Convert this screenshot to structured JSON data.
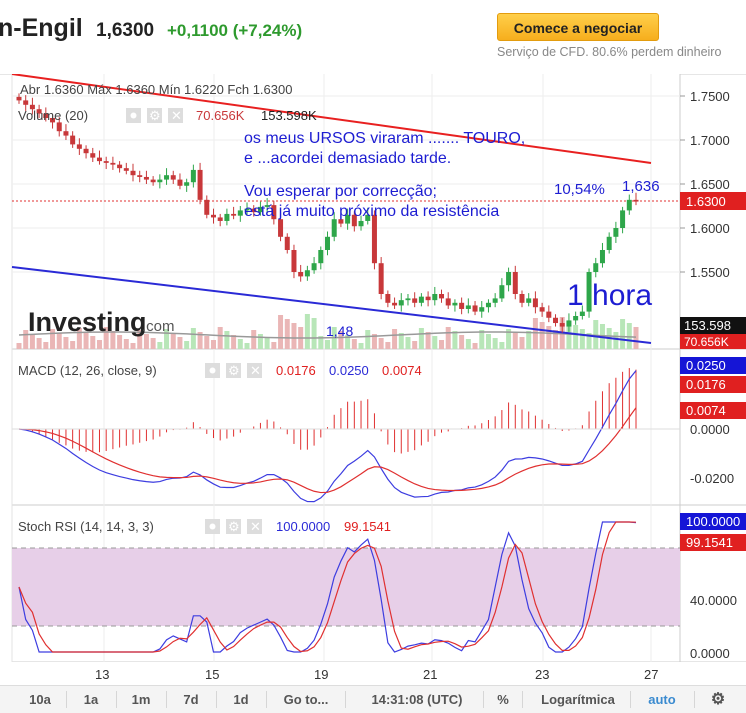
{
  "header": {
    "name": "n-Engil",
    "price": "1,6300",
    "change": "+0,1100 (+7,24%)",
    "cta_label": "Comece a negociar",
    "cfd_note": "Serviço de CFD. 80.6% perdem dinheiro"
  },
  "legend": {
    "ohlc": "Abr 1.6360  Máx 1.6360  Mín 1.6220  Fch 1.6300",
    "volume_label": "Volume (20)",
    "volume_val1": "70.656K",
    "volume_val2": "153.598K",
    "macd_label": "MACD (12, 26, close, 9)",
    "macd_v1": "0.0176",
    "macd_v2": "0.0250",
    "macd_v3": "0.0074",
    "stoch_label": "Stoch RSI (14, 14, 3, 3)",
    "stoch_v1": "100.0000",
    "stoch_v2": "99.1541"
  },
  "annotations": {
    "line1": "os meus URSOS viraram .......  TOURO,",
    "line2": "e ...acordei demasiado tarde.",
    "line3": "Vou esperar por correcção;",
    "line4": "está já muito próximo da resistência",
    "pct": "10,54%",
    "peak": "1,636",
    "timeframe": "1 hora",
    "low": "1,48"
  },
  "watermark": {
    "brand": "Investing",
    "suffix": ".com"
  },
  "price_axis": {
    "ticks": [
      "1.7500",
      "1.7000",
      "1.6500",
      "1.6000",
      "1.5500"
    ],
    "current_price": "1.6300",
    "volume_tag_a": "153.598",
    "volume_tag_b": "70.656K"
  },
  "macd_axis": {
    "ticks": [
      "0.0000",
      "-0.0200"
    ],
    "tag_blue": "0.0250",
    "tag_red1": "0.0176",
    "tag_red2": "0.0074"
  },
  "stoch_axis": {
    "ticks": [
      "40.0000",
      "0.0000"
    ],
    "tag_blue": "100.0000",
    "tag_red": "99.1541"
  },
  "time_axis": {
    "labels": [
      "13",
      "15",
      "19",
      "21",
      "23",
      "27"
    ]
  },
  "toolbar": {
    "r10d": "10a",
    "r1y": "1a",
    "r1m": "1m",
    "r7d": "7d",
    "r1d": "1d",
    "goto": "Go to...",
    "time": "14:31:08 (UTC)",
    "pct": "%",
    "log": "Logarítmica",
    "auto": "auto"
  },
  "colors": {
    "up": "#2ea64a",
    "down": "#c8383a",
    "macd": "#3d3de0",
    "signal": "#e03030",
    "band": "#e7cfe8"
  },
  "chart_data": {
    "type": "candlestick",
    "x_labels": [
      "13",
      "15",
      "19",
      "21",
      "23",
      "27"
    ],
    "close": [
      1.745,
      1.74,
      1.735,
      1.73,
      1.725,
      1.72,
      1.71,
      1.705,
      1.695,
      1.69,
      1.685,
      1.68,
      1.676,
      1.674,
      1.672,
      1.668,
      1.665,
      1.66,
      1.658,
      1.655,
      1.652,
      1.655,
      1.66,
      1.655,
      1.648,
      1.652,
      1.666,
      1.632,
      1.615,
      1.612,
      1.608,
      1.616,
      1.614,
      1.62,
      1.622,
      1.618,
      1.624,
      1.626,
      1.61,
      1.59,
      1.575,
      1.55,
      1.545,
      1.552,
      1.56,
      1.575,
      1.59,
      1.61,
      1.605,
      1.615,
      1.602,
      1.608,
      1.615,
      1.56,
      1.525,
      1.515,
      1.512,
      1.518,
      1.52,
      1.515,
      1.522,
      1.518,
      1.525,
      1.52,
      1.512,
      1.515,
      1.508,
      1.512,
      1.505,
      1.51,
      1.515,
      1.52,
      1.535,
      1.55,
      1.525,
      1.515,
      1.52,
      1.51,
      1.505,
      1.498,
      1.492,
      1.488,
      1.495,
      1.5,
      1.505,
      1.55,
      1.56,
      1.575,
      1.59,
      1.6,
      1.62,
      1.632,
      1.63
    ],
    "ylim": [
      1.48,
      1.76
    ]
  }
}
